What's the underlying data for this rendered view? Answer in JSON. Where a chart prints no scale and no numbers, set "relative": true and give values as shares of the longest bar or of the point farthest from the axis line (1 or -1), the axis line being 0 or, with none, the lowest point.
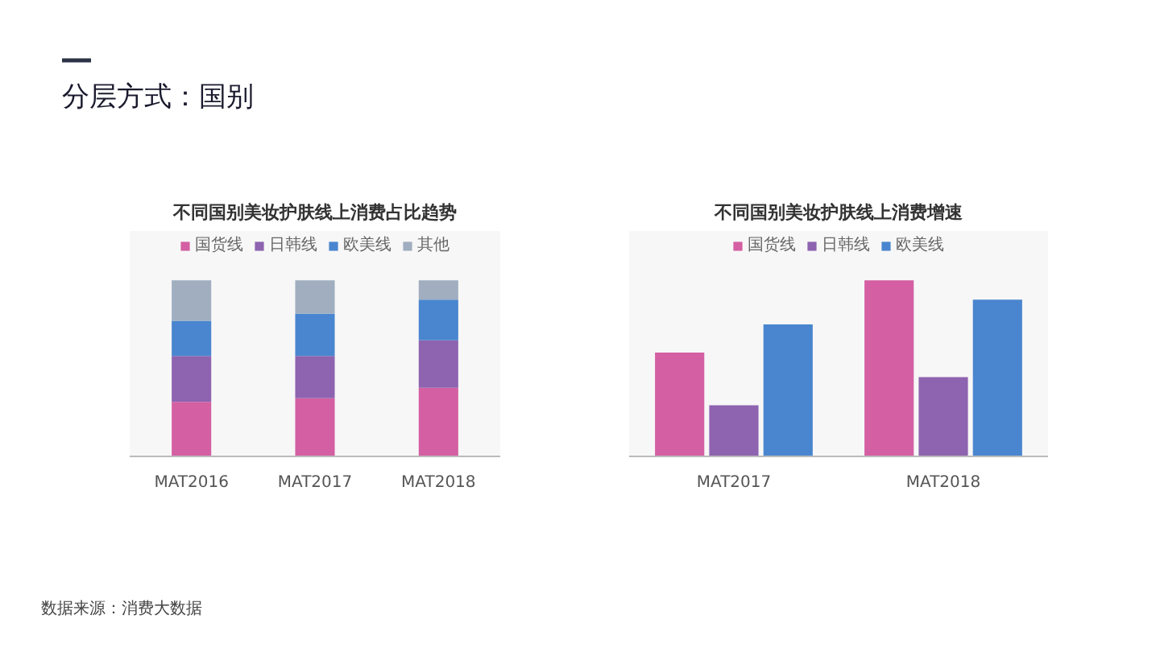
{
  "chart_data": [
    {
      "type": "bar",
      "title": "不同国别美妆护肤线上消费占比趋势",
      "stacked": true,
      "relative": true,
      "legend": "top",
      "grid": false,
      "categories": [
        "MAT2016",
        "MAT2017",
        "MAT2018"
      ],
      "series": [
        {
          "name": "国货线",
          "color": "#d45fa3",
          "values": [
            0.31,
            0.33,
            0.39
          ]
        },
        {
          "name": "日韩线",
          "color": "#8e63b0",
          "values": [
            0.26,
            0.24,
            0.27
          ]
        },
        {
          "name": "欧美线",
          "color": "#4a86cf",
          "values": [
            0.2,
            0.24,
            0.23
          ]
        },
        {
          "name": "其他",
          "color": "#a0aec0",
          "values": [
            0.23,
            0.19,
            0.11
          ]
        }
      ],
      "annotations": [
        "分层方式：国别",
        "数据来源：消费大数据"
      ]
    },
    {
      "type": "bar",
      "title": "不同国别美妆护肤线上消费增速",
      "relative": true,
      "legend": "top",
      "grid": false,
      "categories": [
        "MAT2017",
        "MAT2018"
      ],
      "series": [
        {
          "name": "国货线",
          "color": "#d45fa3",
          "values": [
            0.59,
            1
          ]
        },
        {
          "name": "日韩线",
          "color": "#8e63b0",
          "values": [
            0.29,
            0.45
          ]
        },
        {
          "name": "欧美线",
          "color": "#4a86cf",
          "values": [
            0.75,
            0.89
          ]
        }
      ]
    }
  ]
}
